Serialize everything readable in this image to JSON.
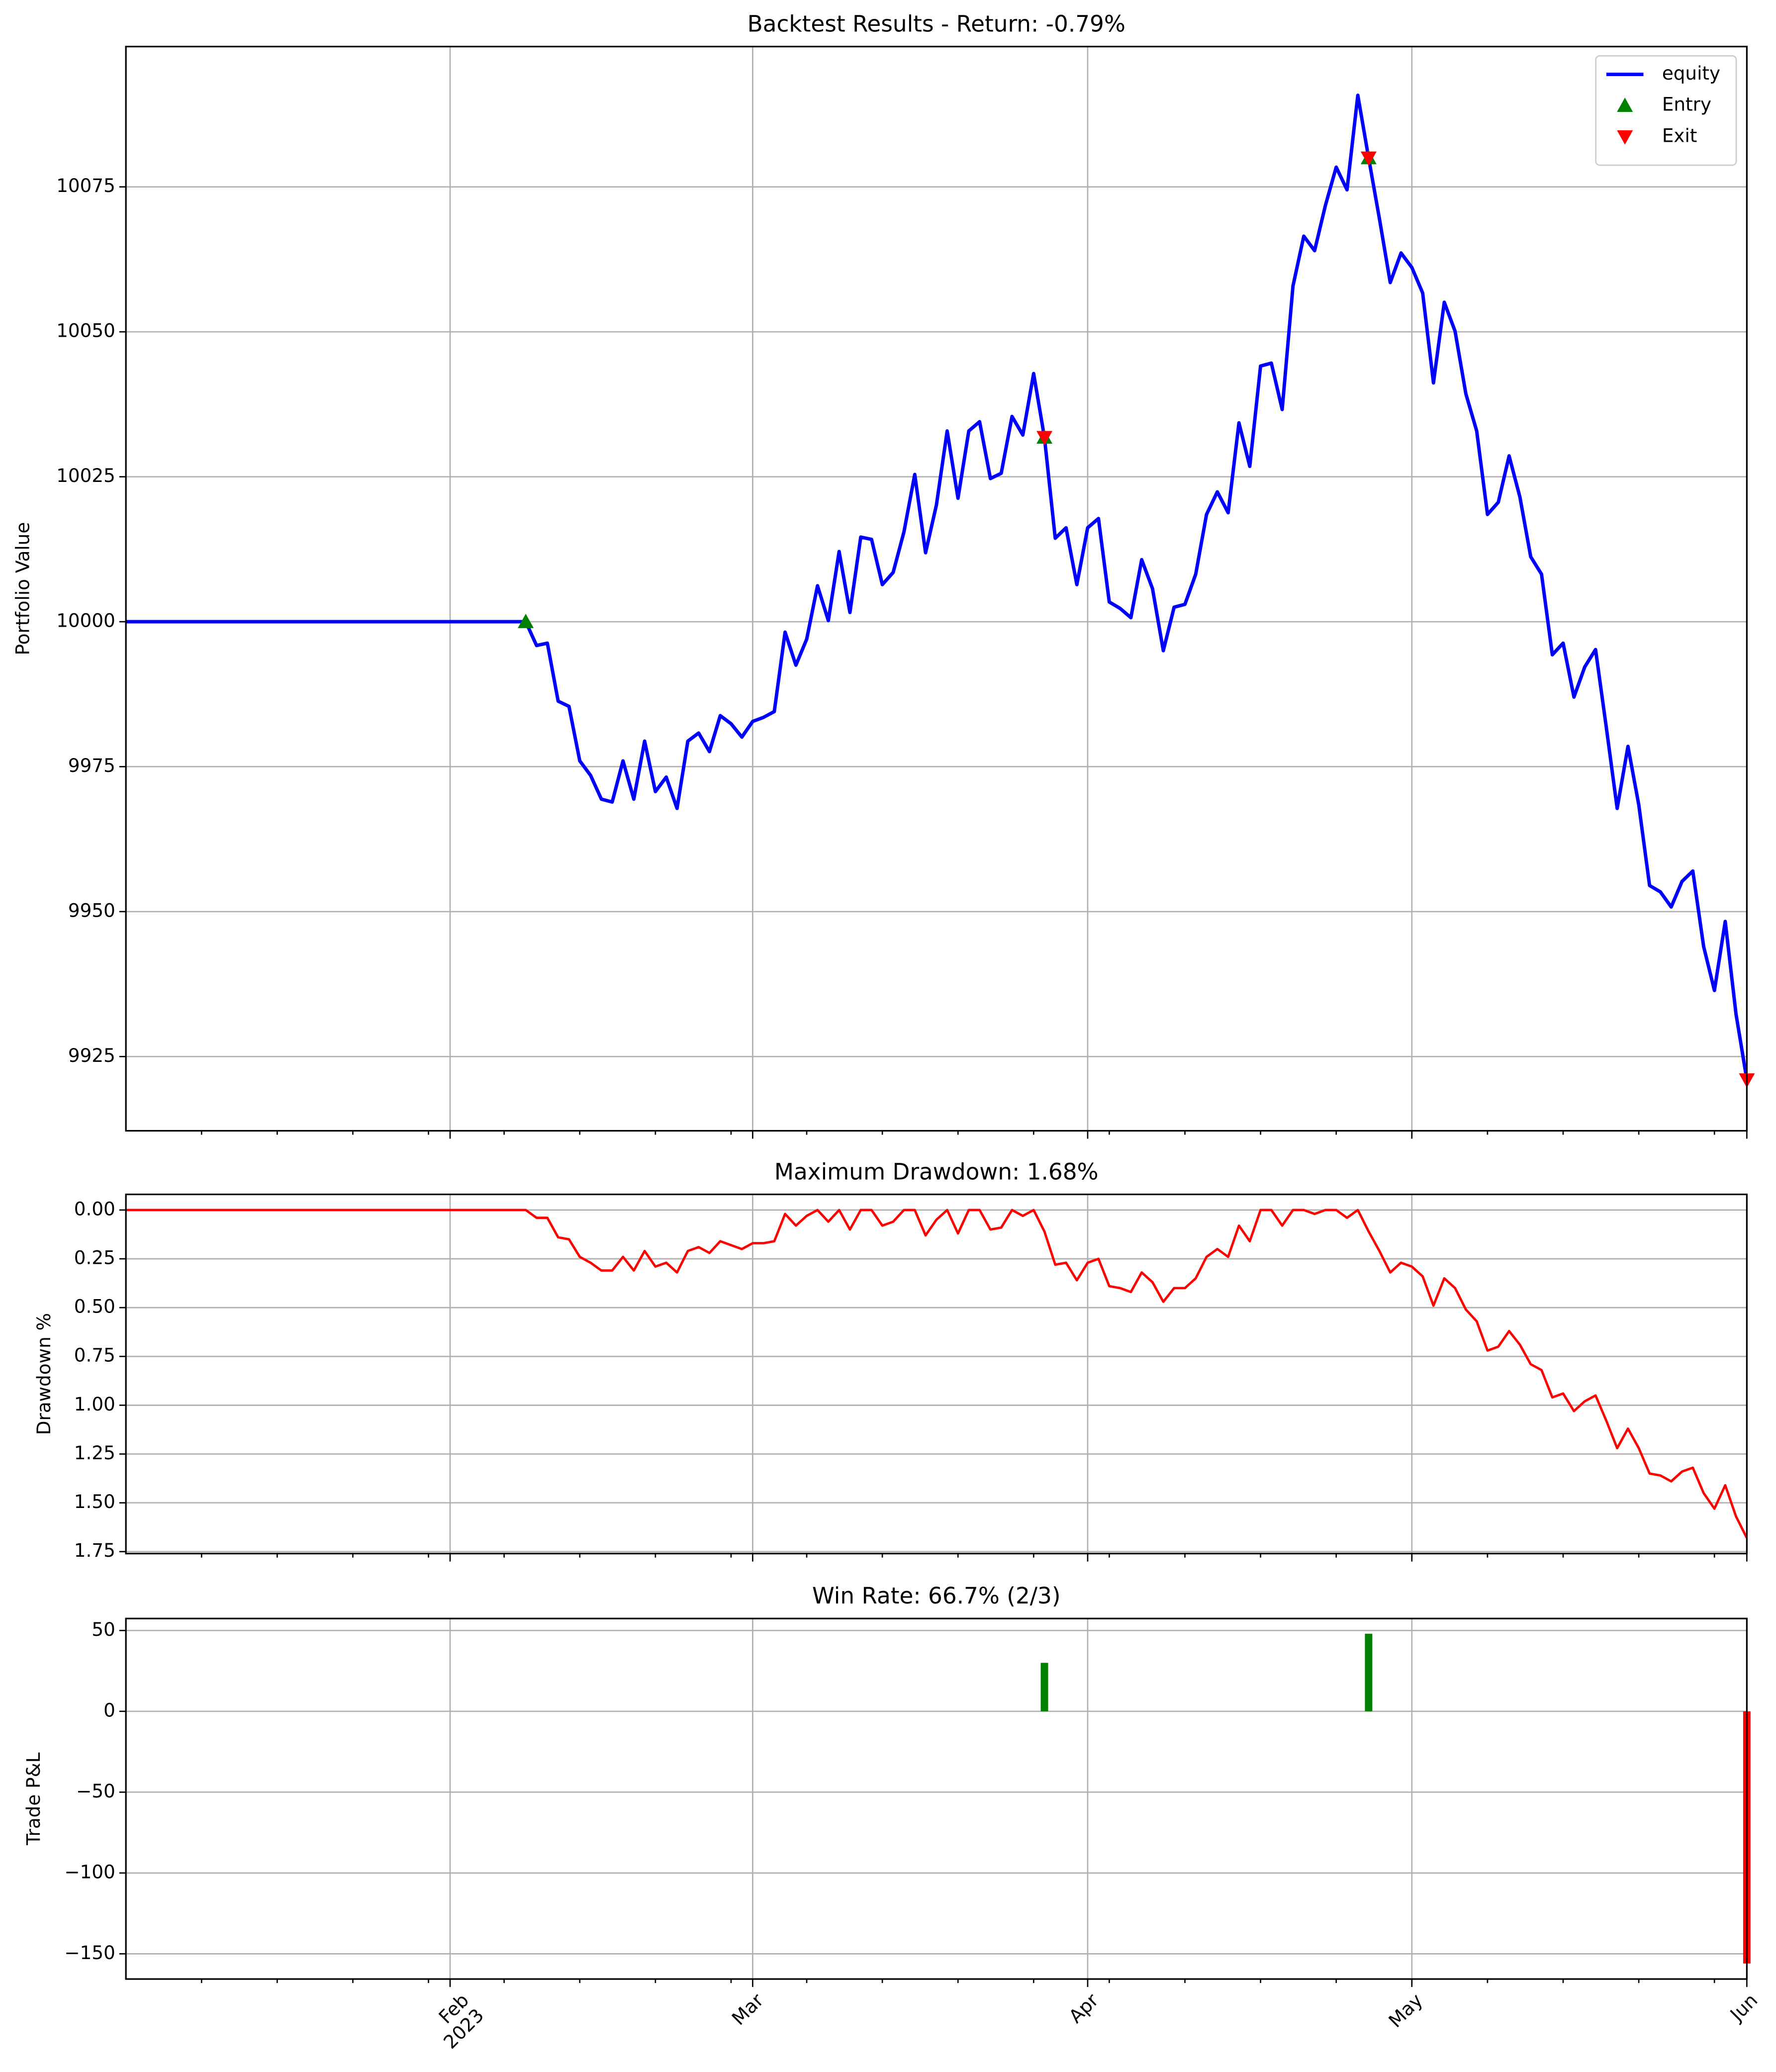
{
  "chart_data": [
    {
      "type": "line",
      "title": "Backtest Results - Return: -0.79%",
      "ylabel": "Portfolio Value",
      "x": [
        "2023-01-02",
        "2023-01-03",
        "2023-01-04",
        "2023-01-05",
        "2023-01-06",
        "2023-01-07",
        "2023-01-08",
        "2023-01-09",
        "2023-01-10",
        "2023-01-11",
        "2023-01-12",
        "2023-01-13",
        "2023-01-14",
        "2023-01-15",
        "2023-01-16",
        "2023-01-17",
        "2023-01-18",
        "2023-01-19",
        "2023-01-20",
        "2023-01-21",
        "2023-01-22",
        "2023-01-23",
        "2023-01-24",
        "2023-01-25",
        "2023-01-26",
        "2023-01-27",
        "2023-01-28",
        "2023-01-29",
        "2023-01-30",
        "2023-01-31",
        "2023-02-01",
        "2023-02-02",
        "2023-02-03",
        "2023-02-04",
        "2023-02-05",
        "2023-02-06",
        "2023-02-07",
        "2023-02-08",
        "2023-02-09",
        "2023-02-10",
        "2023-02-11",
        "2023-02-12",
        "2023-02-13",
        "2023-02-14",
        "2023-02-15",
        "2023-02-16",
        "2023-02-17",
        "2023-02-18",
        "2023-02-19",
        "2023-02-20",
        "2023-02-21",
        "2023-02-22",
        "2023-02-23",
        "2023-02-24",
        "2023-02-25",
        "2023-02-26",
        "2023-02-27",
        "2023-02-28",
        "2023-03-01",
        "2023-03-02",
        "2023-03-03",
        "2023-03-04",
        "2023-03-05",
        "2023-03-06",
        "2023-03-07",
        "2023-03-08",
        "2023-03-09",
        "2023-03-10",
        "2023-03-11",
        "2023-03-12",
        "2023-03-13",
        "2023-03-14",
        "2023-03-15",
        "2023-03-16",
        "2023-03-17",
        "2023-03-18",
        "2023-03-19",
        "2023-03-20",
        "2023-03-21",
        "2023-03-22",
        "2023-03-23",
        "2023-03-24",
        "2023-03-25",
        "2023-03-26",
        "2023-03-27",
        "2023-03-28",
        "2023-03-29",
        "2023-03-30",
        "2023-03-31",
        "2023-04-01",
        "2023-04-02",
        "2023-04-03",
        "2023-04-04",
        "2023-04-05",
        "2023-04-06",
        "2023-04-07",
        "2023-04-08",
        "2023-04-09",
        "2023-04-10",
        "2023-04-11",
        "2023-04-12",
        "2023-04-13",
        "2023-04-14",
        "2023-04-15",
        "2023-04-16",
        "2023-04-17",
        "2023-04-18",
        "2023-04-19",
        "2023-04-20",
        "2023-04-21",
        "2023-04-22",
        "2023-04-23",
        "2023-04-24",
        "2023-04-25",
        "2023-04-26",
        "2023-04-27",
        "2023-04-28",
        "2023-04-29",
        "2023-04-30",
        "2023-05-01",
        "2023-05-02",
        "2023-05-03",
        "2023-05-04",
        "2023-05-05",
        "2023-05-06",
        "2023-05-07",
        "2023-05-08",
        "2023-05-09",
        "2023-05-10",
        "2023-05-11",
        "2023-05-12",
        "2023-05-13",
        "2023-05-14",
        "2023-05-15",
        "2023-05-16",
        "2023-05-17",
        "2023-05-18",
        "2023-05-19",
        "2023-05-20",
        "2023-05-21",
        "2023-05-22",
        "2023-05-23",
        "2023-05-24",
        "2023-05-25",
        "2023-05-26",
        "2023-05-27",
        "2023-05-28",
        "2023-05-29",
        "2023-05-30",
        "2023-05-31",
        "2023-06-01"
      ],
      "series": [
        {
          "name": "equity",
          "color": "#0000ff",
          "values": [
            10000,
            10000,
            10000,
            10000,
            10000,
            10000,
            10000,
            10000,
            10000,
            10000,
            10000,
            10000,
            10000,
            10000,
            10000,
            10000,
            10000,
            10000,
            10000,
            10000,
            10000,
            10000,
            10000,
            10000,
            10000,
            10000,
            10000,
            10000,
            10000,
            10000,
            10000,
            10000,
            10000,
            10000,
            10000,
            10000,
            10000,
            10000,
            9995.9,
            9996.3,
            9986.3,
            9985.4,
            9976.0,
            9973.5,
            9969.4,
            9968.9,
            9976.0,
            9969.4,
            9979.4,
            9970.7,
            9973.2,
            9967.8,
            9979.4,
            9980.8,
            9977.6,
            9983.8,
            9982.4,
            9980.1,
            9982.8,
            9983.5,
            9984.5,
            9998.2,
            9992.5,
            9997.0,
            10006.2,
            10000.2,
            10012.1,
            10001.6,
            10014.6,
            10014.2,
            10006.4,
            10008.5,
            10015.5,
            10025.4,
            10011.9,
            10020.1,
            10032.9,
            10021.3,
            10032.9,
            10034.5,
            10024.7,
            10025.6,
            10035.4,
            10032.2,
            10042.8,
            10031.8,
            10014.4,
            10016.2,
            10006.4,
            10016.2,
            10017.8,
            10003.4,
            10002.3,
            10000.7,
            10010.7,
            10005.7,
            9995.0,
            10002.5,
            10003.0,
            10008.2,
            10018.5,
            10022.4,
            10018.8,
            10034.3,
            10026.8,
            10044.1,
            10044.6,
            10036.6,
            10057.9,
            10066.5,
            10064.0,
            10071.8,
            10078.4,
            10074.5,
            10090.8,
            10080.0,
            10069.5,
            10058.5,
            10063.6,
            10061.1,
            10056.7,
            10041.2,
            10055.1,
            10050.1,
            10039.3,
            10032.9,
            10018.5,
            10020.6,
            10028.6,
            10021.5,
            10011.2,
            10008.2,
            9994.3,
            9996.3,
            9987.0,
            9992.2,
            9995.2,
            9981.7,
            9967.8,
            9978.5,
            9968.4,
            9954.5,
            9953.4,
            9950.8,
            9955.2,
            9957.0,
            9944.0,
            9936.4,
            9948.3,
            9932.3,
            9921.0
          ]
        }
      ],
      "markers": [
        {
          "name": "Entry",
          "color": "#008000",
          "symbol": "triangle-up",
          "x": [
            "2023-02-08",
            "2023-03-28",
            "2023-04-27"
          ],
          "values": [
            10000,
            10031.8,
            10080.0
          ]
        },
        {
          "name": "Exit",
          "color": "#ff0000",
          "symbol": "triangle-down",
          "x": [
            "2023-03-28",
            "2023-04-27",
            "2023-06-01"
          ],
          "values": [
            10031.8,
            10080.0,
            9921.0
          ]
        }
      ],
      "legend": "upper right",
      "grid": true,
      "xlim": [
        "2023-01-02",
        "2023-06-01"
      ],
      "xticks": [
        "2023-02-01",
        "2023-03-01",
        "2023-04-01",
        "2023-05-01",
        "2023-06-01"
      ],
      "ylim": [
        9912.2,
        10099.2
      ],
      "yticks": [
        9925,
        9950,
        9975,
        10000,
        10025,
        10050,
        10075
      ]
    },
    {
      "type": "line",
      "title": "Maximum Drawdown: 1.68%",
      "ylabel": "Drawdown %",
      "x": [
        "2023-01-02",
        "2023-01-03",
        "2023-01-04",
        "2023-01-05",
        "2023-01-06",
        "2023-01-07",
        "2023-01-08",
        "2023-01-09",
        "2023-01-10",
        "2023-01-11",
        "2023-01-12",
        "2023-01-13",
        "2023-01-14",
        "2023-01-15",
        "2023-01-16",
        "2023-01-17",
        "2023-01-18",
        "2023-01-19",
        "2023-01-20",
        "2023-01-21",
        "2023-01-22",
        "2023-01-23",
        "2023-01-24",
        "2023-01-25",
        "2023-01-26",
        "2023-01-27",
        "2023-01-28",
        "2023-01-29",
        "2023-01-30",
        "2023-01-31",
        "2023-02-01",
        "2023-02-02",
        "2023-02-03",
        "2023-02-04",
        "2023-02-05",
        "2023-02-06",
        "2023-02-07",
        "2023-02-08",
        "2023-02-09",
        "2023-02-10",
        "2023-02-11",
        "2023-02-12",
        "2023-02-13",
        "2023-02-14",
        "2023-02-15",
        "2023-02-16",
        "2023-02-17",
        "2023-02-18",
        "2023-02-19",
        "2023-02-20",
        "2023-02-21",
        "2023-02-22",
        "2023-02-23",
        "2023-02-24",
        "2023-02-25",
        "2023-02-26",
        "2023-02-27",
        "2023-02-28",
        "2023-03-01",
        "2023-03-02",
        "2023-03-03",
        "2023-03-04",
        "2023-03-05",
        "2023-03-06",
        "2023-03-07",
        "2023-03-08",
        "2023-03-09",
        "2023-03-10",
        "2023-03-11",
        "2023-03-12",
        "2023-03-13",
        "2023-03-14",
        "2023-03-15",
        "2023-03-16",
        "2023-03-17",
        "2023-03-18",
        "2023-03-19",
        "2023-03-20",
        "2023-03-21",
        "2023-03-22",
        "2023-03-23",
        "2023-03-24",
        "2023-03-25",
        "2023-03-26",
        "2023-03-27",
        "2023-03-28",
        "2023-03-29",
        "2023-03-30",
        "2023-03-31",
        "2023-04-01",
        "2023-04-02",
        "2023-04-03",
        "2023-04-04",
        "2023-04-05",
        "2023-04-06",
        "2023-04-07",
        "2023-04-08",
        "2023-04-09",
        "2023-04-10",
        "2023-04-11",
        "2023-04-12",
        "2023-04-13",
        "2023-04-14",
        "2023-04-15",
        "2023-04-16",
        "2023-04-17",
        "2023-04-18",
        "2023-04-19",
        "2023-04-20",
        "2023-04-21",
        "2023-04-22",
        "2023-04-23",
        "2023-04-24",
        "2023-04-25",
        "2023-04-26",
        "2023-04-27",
        "2023-04-28",
        "2023-04-29",
        "2023-04-30",
        "2023-05-01",
        "2023-05-02",
        "2023-05-03",
        "2023-05-04",
        "2023-05-05",
        "2023-05-06",
        "2023-05-07",
        "2023-05-08",
        "2023-05-09",
        "2023-05-10",
        "2023-05-11",
        "2023-05-12",
        "2023-05-13",
        "2023-05-14",
        "2023-05-15",
        "2023-05-16",
        "2023-05-17",
        "2023-05-18",
        "2023-05-19",
        "2023-05-20",
        "2023-05-21",
        "2023-05-22",
        "2023-05-23",
        "2023-05-24",
        "2023-05-25",
        "2023-05-26",
        "2023-05-27",
        "2023-05-28",
        "2023-05-29",
        "2023-05-30",
        "2023-05-31",
        "2023-06-01"
      ],
      "series": [
        {
          "color": "#ff0000",
          "values": [
            0,
            0,
            0,
            0,
            0,
            0,
            0,
            0,
            0,
            0,
            0,
            0,
            0,
            0,
            0,
            0,
            0,
            0,
            0,
            0,
            0,
            0,
            0,
            0,
            0,
            0,
            0,
            0,
            0,
            0,
            0,
            0,
            0,
            0,
            0,
            0,
            0,
            0,
            0.04,
            0.04,
            0.14,
            0.15,
            0.24,
            0.27,
            0.31,
            0.31,
            0.24,
            0.31,
            0.21,
            0.29,
            0.27,
            0.32,
            0.21,
            0.19,
            0.22,
            0.16,
            0.18,
            0.2,
            0.17,
            0.17,
            0.16,
            0.02,
            0.08,
            0.03,
            0,
            0.06,
            0,
            0.1,
            0,
            0.0,
            0.08,
            0.06,
            0,
            0,
            0.13,
            0.05,
            0,
            0.12,
            0,
            0,
            0.1,
            0.09,
            0,
            0.03,
            0,
            0.11,
            0.28,
            0.27,
            0.36,
            0.27,
            0.25,
            0.39,
            0.4,
            0.42,
            0.32,
            0.37,
            0.47,
            0.4,
            0.4,
            0.35,
            0.24,
            0.2,
            0.24,
            0.08,
            0.16,
            0,
            0,
            0.08,
            0,
            0,
            0.02,
            0,
            0,
            0.04,
            0,
            0.11,
            0.21,
            0.32,
            0.27,
            0.29,
            0.34,
            0.49,
            0.35,
            0.4,
            0.51,
            0.57,
            0.72,
            0.7,
            0.62,
            0.69,
            0.79,
            0.82,
            0.96,
            0.94,
            1.03,
            0.98,
            0.95,
            1.08,
            1.22,
            1.12,
            1.22,
            1.35,
            1.36,
            1.39,
            1.34,
            1.32,
            1.45,
            1.53,
            1.41,
            1.57,
            1.68
          ]
        }
      ],
      "grid": true,
      "xlim": [
        "2023-01-02",
        "2023-06-01"
      ],
      "xticks": [
        "2023-02-01",
        "2023-03-01",
        "2023-04-01",
        "2023-05-01",
        "2023-06-01"
      ],
      "ylim": [
        1.76,
        -0.08
      ],
      "yticks": [
        {
          "value": 0,
          "label": "0.00"
        },
        {
          "value": 0.25,
          "label": "0.25"
        },
        {
          "value": 0.5,
          "label": "0.50"
        },
        {
          "value": 0.75,
          "label": "0.75"
        },
        {
          "value": 1,
          "label": "1.00"
        },
        {
          "value": 1.25,
          "label": "1.25"
        },
        {
          "value": 1.5,
          "label": "1.50"
        },
        {
          "value": 1.75,
          "label": "1.75"
        }
      ]
    },
    {
      "type": "bar",
      "title": "Win Rate: 66.7% (2/3)",
      "ylabel": "Trade P&L",
      "x": [
        "2023-03-28",
        "2023-04-27",
        "2023-06-01"
      ],
      "values": [
        30,
        48,
        -156
      ],
      "colors": [
        "#008000",
        "#008000",
        "#ff0000"
      ],
      "grid": true,
      "xlim": [
        "2023-01-02",
        "2023-06-01"
      ],
      "xticks": [
        {
          "value": "2023-02-01",
          "label": "Feb\n2023"
        },
        {
          "value": "2023-03-01",
          "label": "Mar"
        },
        {
          "value": "2023-04-01",
          "label": "Apr"
        },
        {
          "value": "2023-05-01",
          "label": "May"
        },
        {
          "value": "2023-06-01",
          "label": "Jun"
        }
      ],
      "ylim": [
        -165.6,
        57.4
      ],
      "yticks": [
        {
          "value": -150,
          "label": "−150"
        },
        {
          "value": -100,
          "label": "−100"
        },
        {
          "value": -50,
          "label": "−50"
        },
        0,
        50
      ]
    }
  ]
}
